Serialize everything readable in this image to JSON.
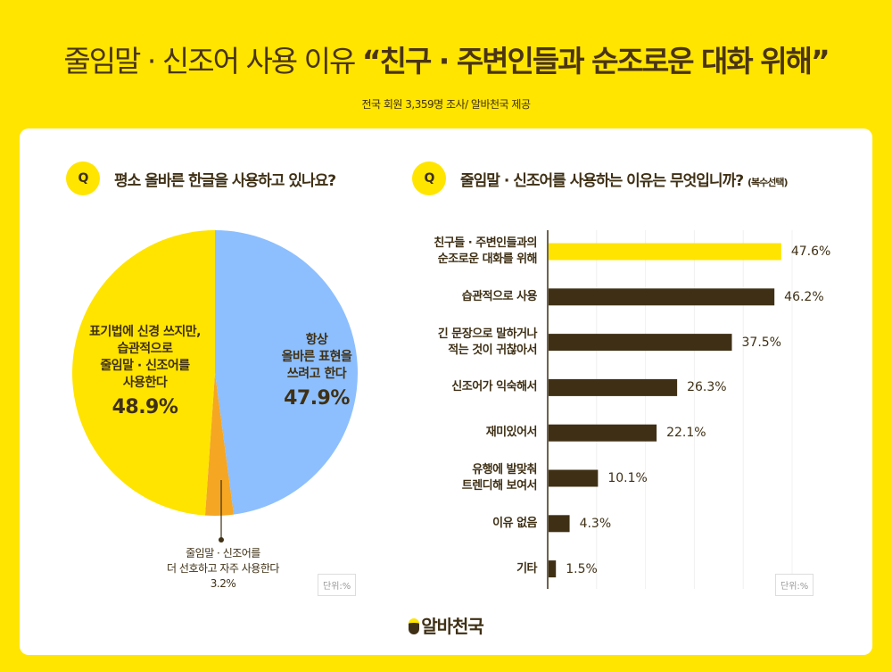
{
  "header": {
    "title_plain": "줄임말 · 신조어 사용 이유",
    "title_bold": "“친구 · 주변인들과 순조로운 대화 위해”",
    "subtitle": "전국 회원 3,359명 조사/ 알바천국 제공"
  },
  "q_badge": "Q",
  "unit_label": "단위:%",
  "logo_text": "알바천국",
  "chart_data": [
    {
      "type": "pie",
      "title": "평소 올바른 한글을 사용하고 있나요?",
      "unit": "%",
      "slices": [
        {
          "label": "항상 올바른 표현을 쓰려고 한다",
          "lines": [
            "항상",
            "올바른 표현을",
            "쓰려고 한다"
          ],
          "value": 47.9,
          "value_label": "47.9%",
          "color": "#8DBFFF"
        },
        {
          "label": "줄임말 · 신조어를 더 선호하고 자주 사용한다",
          "lines": [
            "줄임말 · 신조어를",
            "더 선호하고 자주 사용한다"
          ],
          "value": 3.2,
          "value_label": "3.2%",
          "color": "#F5A623"
        },
        {
          "label": "표기법에 신경 쓰지만, 습관적으로 줄임말 · 신조어를 사용한다",
          "lines": [
            "표기법에 신경 쓰지만,",
            "습관적으로",
            "줄임말 · 신조어를",
            "사용한다"
          ],
          "value": 48.9,
          "value_label": "48.9%",
          "color": "#FFE400"
        }
      ]
    },
    {
      "type": "bar",
      "orientation": "horizontal",
      "title": "줄임말 · 신조어를 사용하는 이유는 무엇입니까?",
      "title_note": "(복수선택)",
      "unit": "%",
      "xlim": [
        0,
        50
      ],
      "grid": true,
      "categories": [
        [
          "친구들 · 주변인들과의",
          "순조로운 대화를 위해"
        ],
        [
          "습관적으로 사용"
        ],
        [
          "긴 문장으로 말하거나",
          "적는 것이 귀찮아서"
        ],
        [
          "신조어가 익숙해서"
        ],
        [
          "재미있어서"
        ],
        [
          "유행에 발맞춰",
          "트렌디해 보여서"
        ],
        [
          "이유 없음"
        ],
        [
          "기타"
        ]
      ],
      "values": [
        47.6,
        46.2,
        37.5,
        26.3,
        22.1,
        10.1,
        4.3,
        1.5
      ],
      "value_labels": [
        "47.6%",
        "46.2%",
        "37.5%",
        "26.3%",
        "22.1%",
        "10.1%",
        "4.3%",
        "1.5%"
      ],
      "highlight_color": "#FFE400",
      "bar_color": "#3F3015"
    }
  ]
}
